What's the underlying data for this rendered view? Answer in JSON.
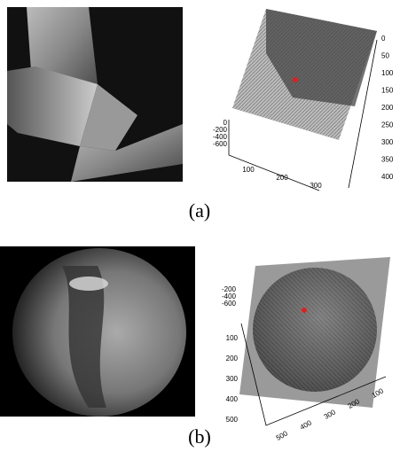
{
  "panels": [
    {
      "label": "(a)",
      "plot": {
        "z_ticks": [
          0,
          -200,
          -400,
          -600
        ],
        "x_ticks": [
          100,
          200,
          300
        ],
        "y_ticks": [
          0,
          50,
          100,
          150,
          200,
          250,
          300,
          350,
          400
        ]
      }
    },
    {
      "label": "(b)",
      "plot": {
        "z_ticks": [
          -200,
          -400,
          -600
        ],
        "x_ticks": [
          500,
          400,
          300,
          200,
          100
        ],
        "y_ticks": [
          100,
          200,
          300,
          400,
          500
        ]
      }
    }
  ]
}
